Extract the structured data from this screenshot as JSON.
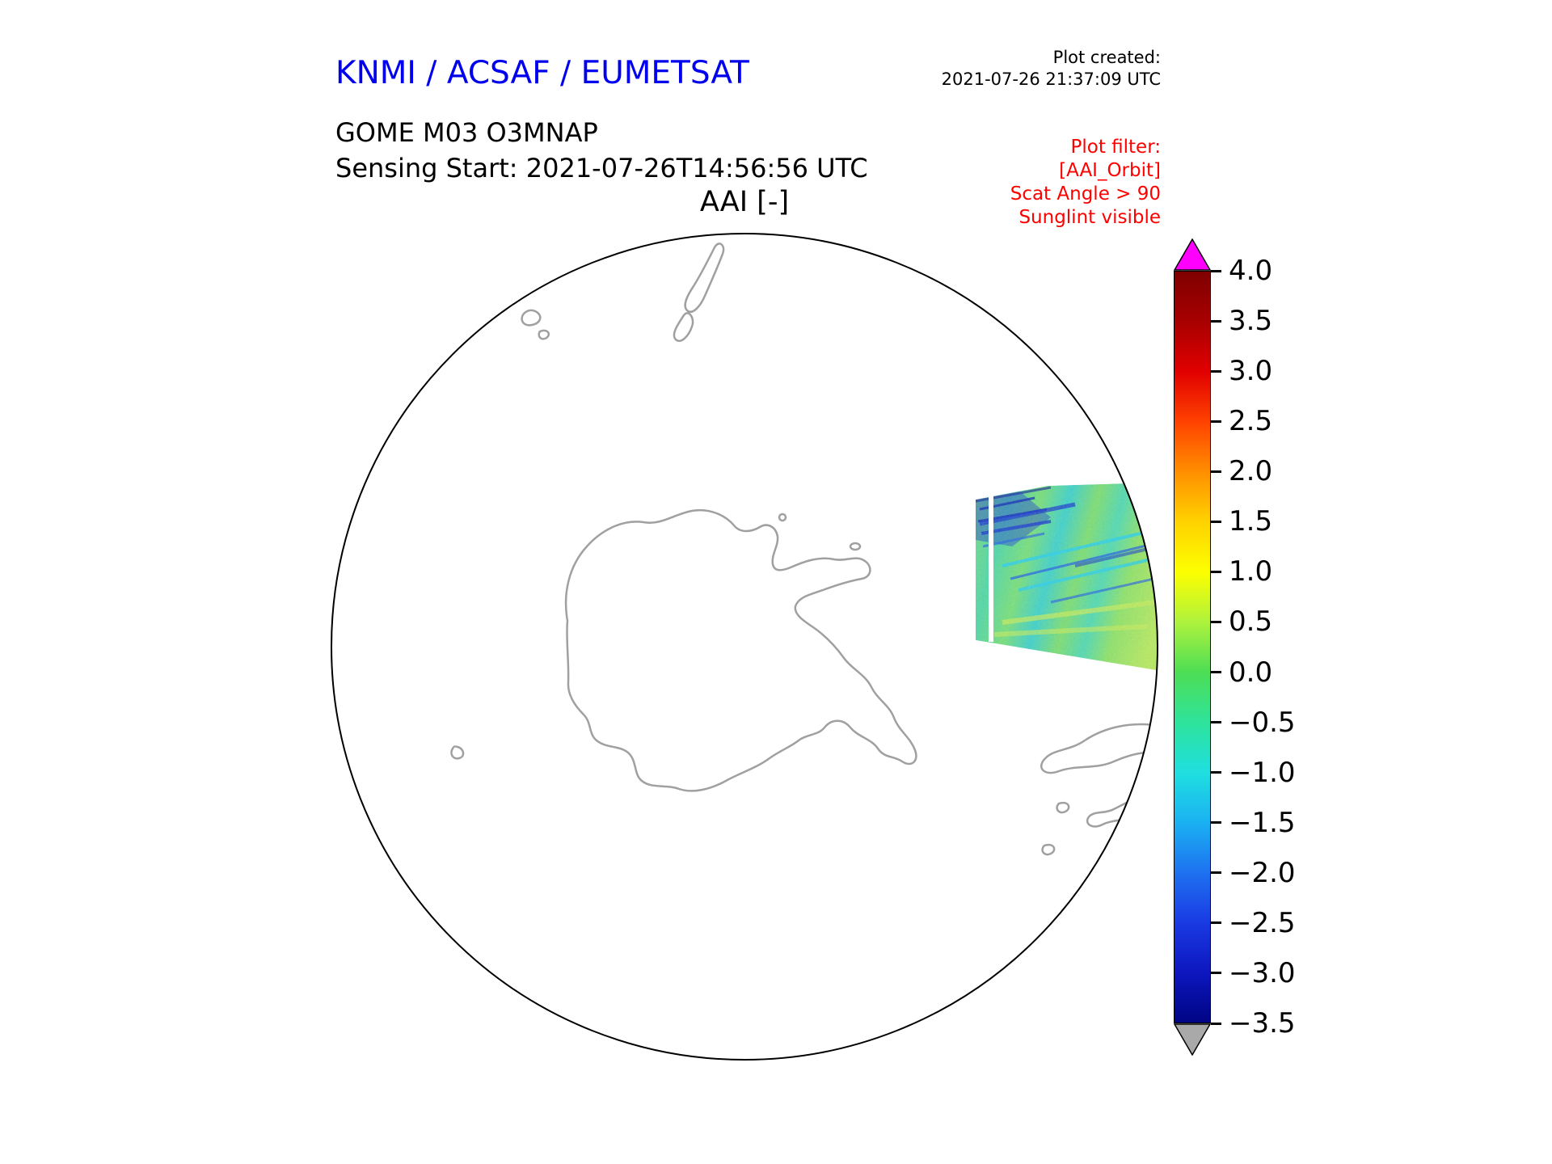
{
  "header": {
    "org_title": "KNMI / ACSAF / EUMETSAT",
    "plot_created_label": "Plot created:",
    "plot_created_value": "2021-07-26 21:37:09 UTC",
    "product_line1": "GOME M03 O3MNAP",
    "product_line2": "Sensing Start: 2021-07-26T14:56:56 UTC",
    "map_title": "AAI [-]"
  },
  "plot_filter": {
    "title": "Plot filter:",
    "lines": [
      "[AAI_Orbit]",
      "Scat Angle > 90",
      "Sunglint visible"
    ]
  },
  "colorbar": {
    "ticks": [
      {
        "value": 4.0,
        "label": "4.0"
      },
      {
        "value": 3.5,
        "label": "3.5"
      },
      {
        "value": 3.0,
        "label": "3.0"
      },
      {
        "value": 2.5,
        "label": "2.5"
      },
      {
        "value": 2.0,
        "label": "2.0"
      },
      {
        "value": 1.5,
        "label": "1.5"
      },
      {
        "value": 1.0,
        "label": "1.0"
      },
      {
        "value": 0.5,
        "label": "0.5"
      },
      {
        "value": 0.0,
        "label": "0.0"
      },
      {
        "value": -0.5,
        "label": "−0.5"
      },
      {
        "value": -1.0,
        "label": "−1.0"
      },
      {
        "value": -1.5,
        "label": "−1.5"
      },
      {
        "value": -2.0,
        "label": "−2.0"
      },
      {
        "value": -2.5,
        "label": "−2.5"
      },
      {
        "value": -3.0,
        "label": "−3.0"
      },
      {
        "value": -3.5,
        "label": "−3.5"
      }
    ]
  },
  "colors": {
    "title_blue": "#0000ee",
    "filter_red": "#ff0000",
    "coastline_gray": "#a0a0a0",
    "circle_black": "#000000",
    "over_arrow": "#ff00ff",
    "under_arrow": "#a9a9a9"
  },
  "chart_data": {
    "type": "heatmap",
    "title": "AAI [-]",
    "map": {
      "projection": "south polar stereographic disc (Antarctica centered)",
      "visible_land": [
        "Antarctica with peninsula",
        "southern tip of South America and nearby islands",
        "New Zealand islands near top of disc",
        "small subantarctic islands"
      ],
      "coastline_color": "#a0a0a0"
    },
    "colorbar": {
      "label": "AAI [-]",
      "min": -3.5,
      "max": 4.0,
      "tick_interval": 0.5,
      "ticks": [
        4.0,
        3.5,
        3.0,
        2.5,
        2.0,
        1.5,
        1.0,
        0.5,
        0.0,
        -0.5,
        -1.0,
        -1.5,
        -2.0,
        -2.5,
        -3.0,
        -3.5
      ],
      "colormap_description": "rainbow jet-like: navy -> blue -> cyan -> green -> yellow -> orange -> red -> dark red, magenta over-arrow, gray under-arrow",
      "over_arrow_color": "#ff00ff",
      "under_arrow_color": "#a9a9a9"
    },
    "swath": {
      "description": "single satellite orbit swath segment on the eastern (right) edge of the disc, clipped by the disc boundary",
      "approx_value_pattern": "mostly 0.0 to 0.8 (green/teal) with diagonal cyan and blue streaks around −0.5 to −2.5, denser dark-blue cluster at the swath's upper-left, lighter yellow-green band near its lower edge",
      "no_data_gap": "thin white vertical stripe near the western edge of the swath"
    }
  }
}
